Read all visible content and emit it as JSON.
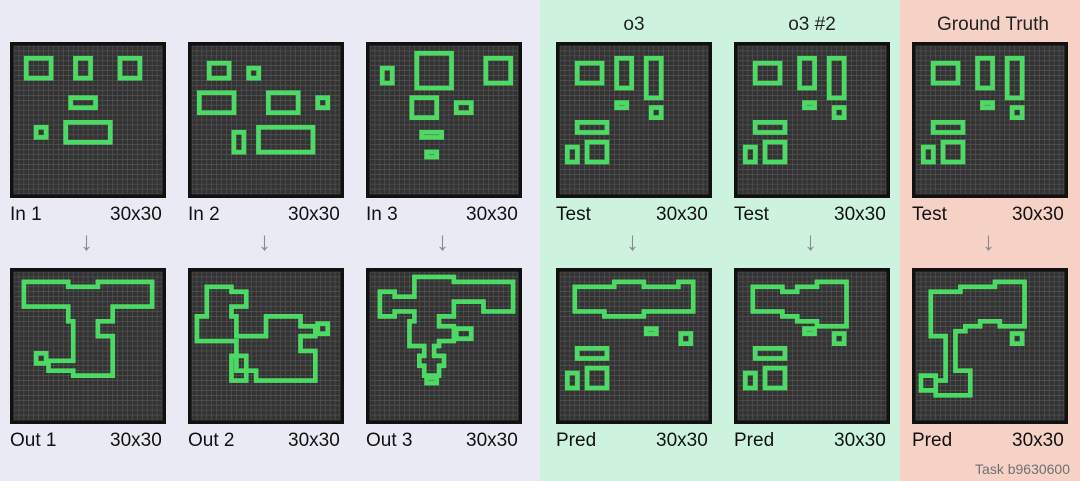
{
  "colors": {
    "bg_left": "#e9eaf4",
    "bg_mid": "#cdf3df",
    "bg_right": "#f6d2c6",
    "cell_bg": "#333333",
    "grid_line": "#585858",
    "frame": "#111111",
    "shape": "#4cd964",
    "arrow": "#8a8a8a"
  },
  "headers": {
    "o3": "o3",
    "o3_2": "o3 #2",
    "gt": "Ground Truth"
  },
  "arrow_glyph": "↓",
  "panels": [
    {
      "id": "in1",
      "label": "In 1",
      "size": "30x30",
      "rects": [
        [
          2,
          2,
          8,
          7
        ],
        [
          12,
          2,
          16,
          7
        ],
        [
          21,
          2,
          26,
          7
        ],
        [
          11,
          10,
          17,
          13
        ],
        [
          4,
          16,
          7,
          19
        ],
        [
          10,
          15,
          20,
          20
        ]
      ]
    },
    {
      "id": "in2",
      "label": "In 2",
      "size": "30x30",
      "rects": [
        [
          3,
          3,
          8,
          7
        ],
        [
          11,
          4,
          14,
          7
        ],
        [
          1,
          9,
          9,
          14
        ],
        [
          15,
          9,
          22,
          14
        ],
        [
          25,
          10,
          28,
          13
        ],
        [
          8,
          17,
          11,
          22
        ],
        [
          13,
          16,
          25,
          22
        ]
      ]
    },
    {
      "id": "in3",
      "label": "In 3",
      "size": "30x30",
      "rects": [
        [
          2,
          4,
          5,
          8
        ],
        [
          9,
          1,
          17,
          9
        ],
        [
          23,
          2,
          29,
          8
        ],
        [
          8,
          10,
          14,
          15
        ],
        [
          17,
          11,
          21,
          14
        ],
        [
          10,
          17,
          15,
          19
        ],
        [
          11,
          21,
          14,
          23
        ]
      ]
    },
    {
      "id": "out1",
      "label": "Out 1",
      "size": "30x30",
      "polys": [
        [
          [
            2,
            2
          ],
          [
            11,
            2
          ],
          [
            11,
            3
          ],
          [
            17,
            3
          ],
          [
            17,
            2
          ],
          [
            28,
            2
          ],
          [
            28,
            7
          ],
          [
            20,
            7
          ],
          [
            20,
            10
          ],
          [
            17,
            10
          ],
          [
            17,
            13
          ],
          [
            20,
            13
          ],
          [
            20,
            21
          ],
          [
            12,
            21
          ],
          [
            12,
            20
          ],
          [
            7,
            20
          ],
          [
            7,
            18
          ],
          [
            12,
            18
          ],
          [
            12,
            10
          ],
          [
            11,
            10
          ],
          [
            11,
            7
          ],
          [
            2,
            7
          ]
        ]
      ],
      "rects": [
        [
          4,
          16,
          7,
          19
        ]
      ]
    },
    {
      "id": "out2",
      "label": "Out 2",
      "size": "30x30",
      "polys": [
        [
          [
            3,
            3
          ],
          [
            8,
            3
          ],
          [
            8,
            4
          ],
          [
            11,
            4
          ],
          [
            11,
            7
          ],
          [
            8,
            7
          ],
          [
            8,
            9
          ],
          [
            9,
            9
          ],
          [
            9,
            13
          ],
          [
            15,
            13
          ],
          [
            15,
            9
          ],
          [
            22,
            9
          ],
          [
            22,
            11
          ],
          [
            25,
            11
          ],
          [
            25,
            13
          ],
          [
            22,
            13
          ],
          [
            22,
            16
          ],
          [
            25,
            16
          ],
          [
            25,
            22
          ],
          [
            13,
            22
          ],
          [
            13,
            20
          ],
          [
            11,
            20
          ],
          [
            11,
            17
          ],
          [
            8,
            17
          ],
          [
            8,
            22
          ],
          [
            11,
            22
          ],
          [
            11,
            20
          ],
          [
            9,
            20
          ],
          [
            9,
            14
          ],
          [
            1,
            14
          ],
          [
            1,
            9
          ],
          [
            3,
            9
          ]
        ]
      ],
      "rects": [
        [
          25,
          10,
          28,
          13
        ]
      ]
    },
    {
      "id": "out3",
      "label": "Out 3",
      "size": "30x30",
      "polys": [
        [
          [
            9,
            1
          ],
          [
            17,
            1
          ],
          [
            17,
            2
          ],
          [
            29,
            2
          ],
          [
            29,
            8
          ],
          [
            23,
            8
          ],
          [
            23,
            6
          ],
          [
            17,
            6
          ],
          [
            17,
            9
          ],
          [
            14,
            9
          ],
          [
            14,
            11
          ],
          [
            17,
            11
          ],
          [
            17,
            14
          ],
          [
            14,
            14
          ],
          [
            14,
            15
          ],
          [
            13,
            15
          ],
          [
            13,
            17
          ],
          [
            15,
            17
          ],
          [
            15,
            19
          ],
          [
            14,
            19
          ],
          [
            14,
            21
          ],
          [
            11,
            21
          ],
          [
            11,
            19
          ],
          [
            10,
            19
          ],
          [
            10,
            17
          ],
          [
            11,
            17
          ],
          [
            11,
            15
          ],
          [
            8,
            15
          ],
          [
            8,
            10
          ],
          [
            9,
            10
          ],
          [
            9,
            8
          ],
          [
            5,
            8
          ],
          [
            5,
            9
          ],
          [
            2,
            9
          ],
          [
            2,
            4
          ],
          [
            5,
            4
          ],
          [
            5,
            5
          ],
          [
            9,
            5
          ]
        ]
      ],
      "rects": [
        [
          17,
          11,
          21,
          14
        ],
        [
          11,
          21,
          14,
          23
        ]
      ]
    },
    {
      "id": "test1",
      "label": "Test",
      "size": "30x30",
      "rects": [
        [
          3,
          3,
          9,
          8
        ],
        [
          11,
          2,
          15,
          9
        ],
        [
          17,
          2,
          21,
          11
        ],
        [
          11,
          11,
          14,
          13
        ],
        [
          18,
          12,
          21,
          15
        ],
        [
          3,
          15,
          10,
          18
        ],
        [
          1,
          20,
          4,
          24
        ],
        [
          5,
          19,
          10,
          24
        ]
      ]
    },
    {
      "id": "pred1",
      "label": "Pred",
      "size": "30x30",
      "polys": [
        [
          [
            3,
            3
          ],
          [
            11,
            3
          ],
          [
            11,
            2
          ],
          [
            17,
            2
          ],
          [
            17,
            3
          ],
          [
            24,
            3
          ],
          [
            24,
            2
          ],
          [
            27,
            2
          ],
          [
            27,
            8
          ],
          [
            17,
            8
          ],
          [
            17,
            9
          ],
          [
            9,
            9
          ],
          [
            9,
            8
          ],
          [
            3,
            8
          ]
        ]
      ],
      "rects": [
        [
          17,
          11,
          20,
          13
        ],
        [
          24,
          12,
          27,
          15
        ],
        [
          3,
          15,
          10,
          18
        ],
        [
          1,
          20,
          4,
          24
        ],
        [
          5,
          19,
          10,
          24
        ]
      ]
    },
    {
      "id": "test2",
      "label": "Test",
      "size": "30x30",
      "rects": [
        [
          3,
          3,
          9,
          8
        ],
        [
          12,
          2,
          16,
          9
        ],
        [
          18,
          2,
          22,
          11
        ],
        [
          13,
          11,
          16,
          13
        ],
        [
          19,
          12,
          22,
          15
        ],
        [
          3,
          15,
          10,
          18
        ],
        [
          1,
          20,
          4,
          24
        ],
        [
          5,
          19,
          10,
          24
        ]
      ]
    },
    {
      "id": "pred2",
      "label": "Pred",
      "size": "30x30",
      "polys": [
        [
          [
            3,
            3
          ],
          [
            9,
            3
          ],
          [
            9,
            4
          ],
          [
            12,
            4
          ],
          [
            12,
            3
          ],
          [
            16,
            3
          ],
          [
            16,
            2
          ],
          [
            22,
            2
          ],
          [
            22,
            11
          ],
          [
            16,
            11
          ],
          [
            16,
            10
          ],
          [
            12,
            10
          ],
          [
            12,
            9
          ],
          [
            9,
            9
          ],
          [
            9,
            8
          ],
          [
            3,
            8
          ]
        ]
      ],
      "rects": [
        [
          13,
          11,
          16,
          13
        ],
        [
          19,
          12,
          22,
          15
        ],
        [
          3,
          15,
          10,
          18
        ],
        [
          1,
          20,
          4,
          24
        ],
        [
          5,
          19,
          10,
          24
        ]
      ]
    },
    {
      "id": "test3",
      "label": "Test",
      "size": "30x30",
      "rects": [
        [
          3,
          3,
          9,
          8
        ],
        [
          12,
          2,
          16,
          9
        ],
        [
          18,
          2,
          22,
          11
        ],
        [
          13,
          11,
          16,
          13
        ],
        [
          19,
          12,
          22,
          15
        ],
        [
          3,
          15,
          10,
          18
        ],
        [
          1,
          20,
          4,
          24
        ],
        [
          5,
          19,
          10,
          24
        ]
      ]
    },
    {
      "id": "gt",
      "label": "Pred",
      "size": "30x30",
      "polys": [
        [
          [
            3,
            4
          ],
          [
            9,
            4
          ],
          [
            9,
            3
          ],
          [
            16,
            3
          ],
          [
            16,
            2
          ],
          [
            22,
            2
          ],
          [
            22,
            11
          ],
          [
            17,
            11
          ],
          [
            17,
            10
          ],
          [
            13,
            10
          ],
          [
            13,
            11
          ],
          [
            10,
            11
          ],
          [
            10,
            12
          ],
          [
            8,
            12
          ],
          [
            8,
            20
          ],
          [
            11,
            20
          ],
          [
            11,
            25
          ],
          [
            4,
            25
          ],
          [
            4,
            21
          ],
          [
            1,
            21
          ],
          [
            1,
            24
          ],
          [
            4,
            24
          ],
          [
            4,
            22
          ],
          [
            6,
            22
          ],
          [
            6,
            13
          ],
          [
            3,
            13
          ]
        ]
      ],
      "rects": [
        [
          19,
          12,
          22,
          15
        ]
      ]
    }
  ],
  "footer": "Task b9630600"
}
